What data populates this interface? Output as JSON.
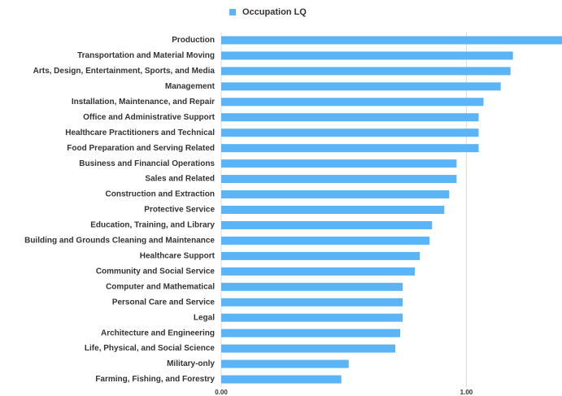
{
  "chart_data": {
    "type": "barh",
    "legend": "Occupation LQ",
    "color": "#5ab4f5",
    "categories": [
      "Production",
      "Transportation  and Material  Moving",
      "Arts, Design, Entertainment, Sports, and Media",
      "Management",
      "Installation, Maintenance, and Repair",
      "Office and Administrative Support",
      "Healthcare Practitioners and Technical",
      "Food Preparation and Serving Related",
      "Business and Financial Operations",
      "Sales and Related",
      "Construction and Extraction",
      "Protective Service",
      "Education, Training, and Library",
      "Building and Grounds Cleaning and Maintenance",
      "Healthcare  Support",
      "Community and Social Service",
      "Computer and Mathematical",
      "Personal Care and Service",
      "Legal",
      "Architecture and Engineering",
      "Life, Physical, and Social Science",
      "Military-only",
      "Farming, Fishing, and Forestry"
    ],
    "values": [
      1.39,
      1.19,
      1.18,
      1.14,
      1.07,
      1.05,
      1.05,
      1.05,
      0.96,
      0.96,
      0.93,
      0.91,
      0.86,
      0.85,
      0.81,
      0.79,
      0.74,
      0.74,
      0.74,
      0.73,
      0.71,
      0.52,
      0.49
    ],
    "xlim": [
      0,
      1.39
    ],
    "xticks": [
      {
        "value": 0,
        "label": "0.00"
      },
      {
        "value": 1,
        "label": "1.00"
      }
    ],
    "grid": true
  }
}
